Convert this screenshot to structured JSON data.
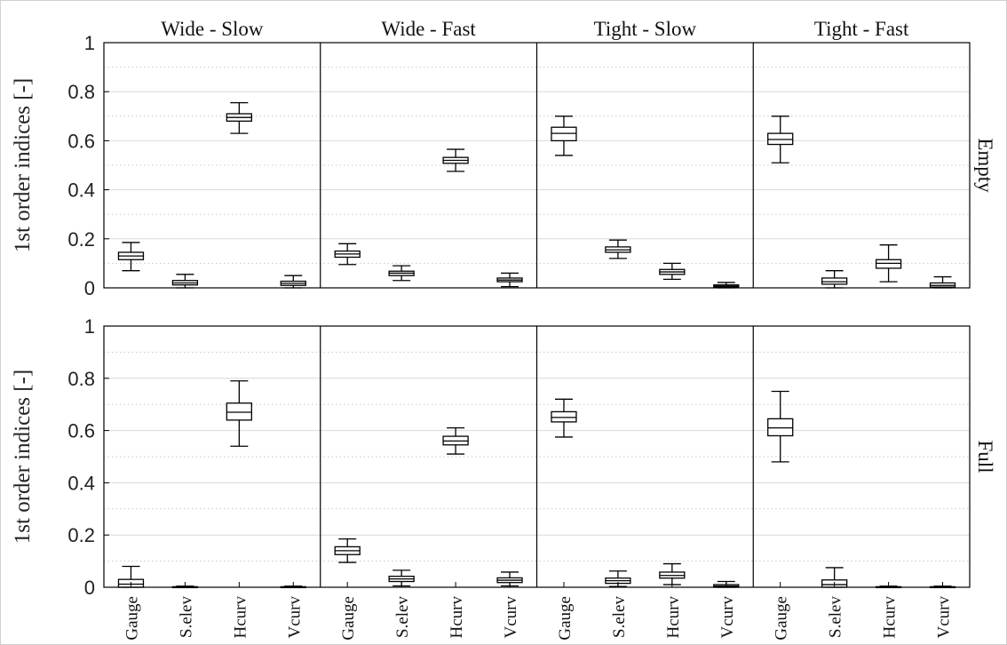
{
  "chart_data": {
    "type": "box",
    "ylabel": "1st order indices [-]",
    "ylim": [
      0,
      1
    ],
    "yticks": [
      "0",
      "0.2",
      "0.4",
      "0.6",
      "0.8",
      "1"
    ],
    "columns": [
      "Wide - Slow",
      "Wide - Fast",
      "Tight - Slow",
      "Tight - Fast"
    ],
    "rows": [
      "Empty",
      "Full"
    ],
    "categories": [
      "Gauge",
      "S.elev",
      "Hcurv",
      "Vcurv"
    ],
    "grid": true,
    "panels": [
      {
        "row": "Empty",
        "column": "Wide - Slow",
        "boxes": [
          {
            "category": "Gauge",
            "min": 0.07,
            "q1": 0.115,
            "median": 0.13,
            "q3": 0.145,
            "max": 0.185
          },
          {
            "category": "S.elev",
            "min": 0.0,
            "q1": 0.012,
            "median": 0.02,
            "q3": 0.03,
            "max": 0.055
          },
          {
            "category": "Hcurv",
            "min": 0.63,
            "q1": 0.68,
            "median": 0.695,
            "q3": 0.71,
            "max": 0.755
          },
          {
            "category": "Vcurv",
            "min": 0.0,
            "q1": 0.01,
            "median": 0.018,
            "q3": 0.027,
            "max": 0.05
          }
        ]
      },
      {
        "row": "Empty",
        "column": "Wide - Fast",
        "boxes": [
          {
            "category": "Gauge",
            "min": 0.095,
            "q1": 0.125,
            "median": 0.138,
            "q3": 0.15,
            "max": 0.18
          },
          {
            "category": "S.elev",
            "min": 0.03,
            "q1": 0.05,
            "median": 0.06,
            "q3": 0.068,
            "max": 0.09
          },
          {
            "category": "Hcurv",
            "min": 0.475,
            "q1": 0.508,
            "median": 0.52,
            "q3": 0.532,
            "max": 0.565
          },
          {
            "category": "Vcurv",
            "min": 0.005,
            "q1": 0.025,
            "median": 0.032,
            "q3": 0.04,
            "max": 0.06
          }
        ]
      },
      {
        "row": "Empty",
        "column": "Tight - Slow",
        "boxes": [
          {
            "category": "Gauge",
            "min": 0.54,
            "q1": 0.6,
            "median": 0.63,
            "q3": 0.655,
            "max": 0.7
          },
          {
            "category": "S.elev",
            "min": 0.12,
            "q1": 0.145,
            "median": 0.155,
            "q3": 0.167,
            "max": 0.195
          },
          {
            "category": "Hcurv",
            "min": 0.035,
            "q1": 0.055,
            "median": 0.065,
            "q3": 0.075,
            "max": 0.1
          },
          {
            "category": "Vcurv",
            "min": 0.0,
            "q1": 0.003,
            "median": 0.007,
            "q3": 0.012,
            "max": 0.022
          }
        ]
      },
      {
        "row": "Empty",
        "column": "Tight - Fast",
        "boxes": [
          {
            "category": "Gauge",
            "min": 0.51,
            "q1": 0.585,
            "median": 0.605,
            "q3": 0.63,
            "max": 0.7
          },
          {
            "category": "S.elev",
            "min": 0.0,
            "q1": 0.015,
            "median": 0.025,
            "q3": 0.04,
            "max": 0.07
          },
          {
            "category": "Hcurv",
            "min": 0.025,
            "q1": 0.08,
            "median": 0.1,
            "q3": 0.115,
            "max": 0.175
          },
          {
            "category": "Vcurv",
            "min": 0.0,
            "q1": 0.003,
            "median": 0.01,
            "q3": 0.02,
            "max": 0.045
          }
        ]
      },
      {
        "row": "Full",
        "column": "Wide - Slow",
        "boxes": [
          {
            "category": "Gauge",
            "min": 0.0,
            "q1": 0.0,
            "median": 0.012,
            "q3": 0.03,
            "max": 0.08
          },
          {
            "category": "S.elev",
            "min": 0.0,
            "q1": 0.0,
            "median": 0.0,
            "q3": 0.002,
            "max": 0.004
          },
          {
            "category": "Hcurv",
            "min": 0.54,
            "q1": 0.64,
            "median": 0.67,
            "q3": 0.705,
            "max": 0.79
          },
          {
            "category": "Vcurv",
            "min": 0.0,
            "q1": 0.0,
            "median": 0.0,
            "q3": 0.002,
            "max": 0.004
          }
        ]
      },
      {
        "row": "Full",
        "column": "Wide - Fast",
        "boxes": [
          {
            "category": "Gauge",
            "min": 0.095,
            "q1": 0.125,
            "median": 0.14,
            "q3": 0.155,
            "max": 0.185
          },
          {
            "category": "S.elev",
            "min": 0.005,
            "q1": 0.022,
            "median": 0.032,
            "q3": 0.042,
            "max": 0.065
          },
          {
            "category": "Hcurv",
            "min": 0.51,
            "q1": 0.545,
            "median": 0.56,
            "q3": 0.578,
            "max": 0.61
          },
          {
            "category": "Vcurv",
            "min": 0.005,
            "q1": 0.018,
            "median": 0.027,
            "q3": 0.036,
            "max": 0.058
          }
        ]
      },
      {
        "row": "Full",
        "column": "Tight - Slow",
        "boxes": [
          {
            "category": "Gauge",
            "min": 0.575,
            "q1": 0.633,
            "median": 0.65,
            "q3": 0.672,
            "max": 0.72
          },
          {
            "category": "S.elev",
            "min": 0.003,
            "q1": 0.015,
            "median": 0.025,
            "q3": 0.035,
            "max": 0.062
          },
          {
            "category": "Hcurv",
            "min": 0.01,
            "q1": 0.035,
            "median": 0.045,
            "q3": 0.058,
            "max": 0.09
          },
          {
            "category": "Vcurv",
            "min": 0.0,
            "q1": 0.0,
            "median": 0.004,
            "q3": 0.01,
            "max": 0.022
          }
        ]
      },
      {
        "row": "Full",
        "column": "Tight - Fast",
        "boxes": [
          {
            "category": "Gauge",
            "min": 0.48,
            "q1": 0.58,
            "median": 0.61,
            "q3": 0.645,
            "max": 0.75
          },
          {
            "category": "S.elev",
            "min": 0.0,
            "q1": 0.0,
            "median": 0.01,
            "q3": 0.028,
            "max": 0.075
          },
          {
            "category": "Hcurv",
            "min": 0.0,
            "q1": 0.0,
            "median": 0.0,
            "q3": 0.002,
            "max": 0.004
          },
          {
            "category": "Vcurv",
            "min": 0.0,
            "q1": 0.0,
            "median": 0.0,
            "q3": 0.002,
            "max": 0.004
          }
        ]
      }
    ]
  }
}
